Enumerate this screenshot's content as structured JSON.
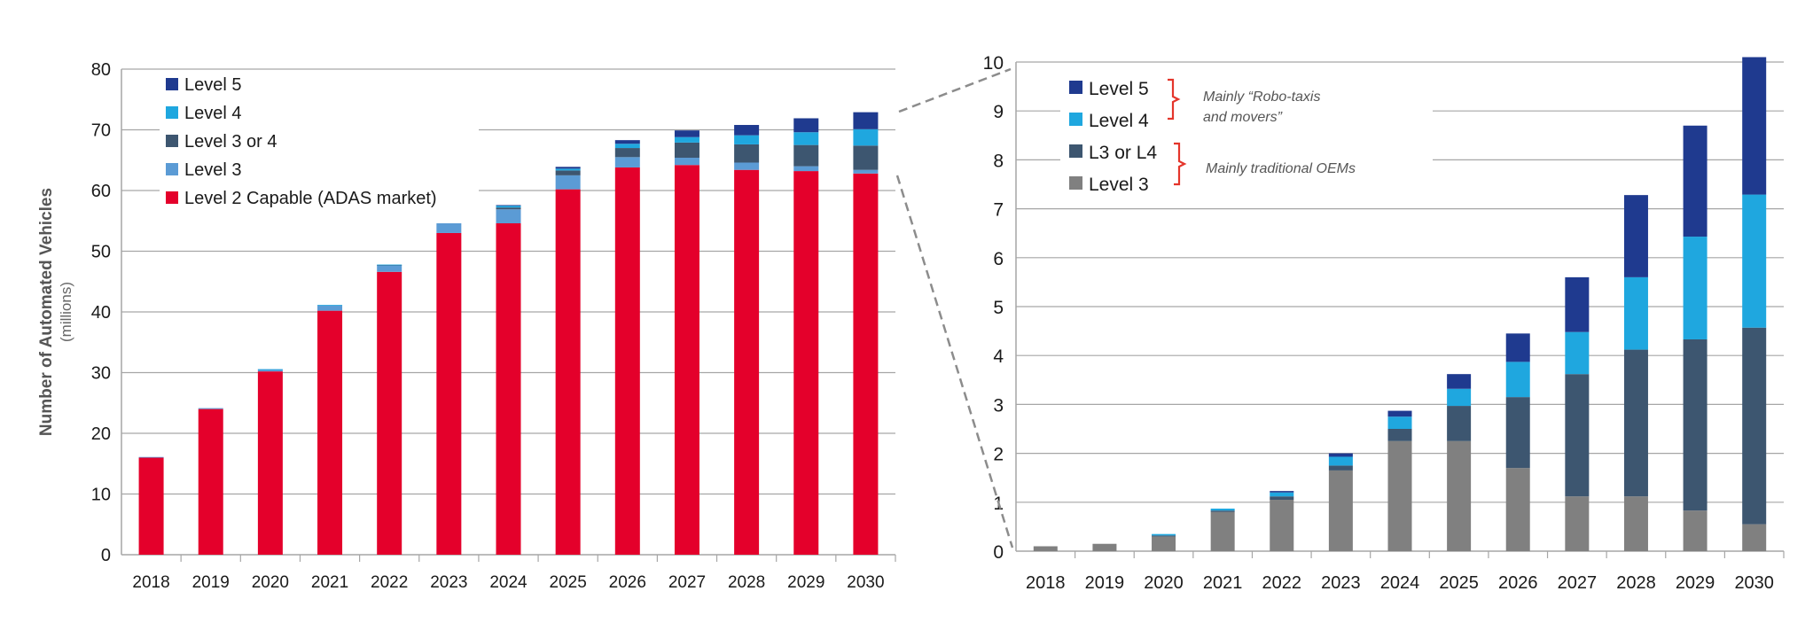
{
  "colors": {
    "level5": "#1f3a8f",
    "level4": "#1fa7df",
    "level3or4": "#3d5670",
    "level3_left": "#5b9bd5",
    "level2": "#e4002b",
    "level3_right": "#808080",
    "grid": "#a6a6a6",
    "axis_text": "#1a1a1a",
    "bracket": "#e4352b",
    "annotation": "#555555",
    "connector": "#8c8c8c"
  },
  "chart_data": [
    {
      "type": "bar",
      "stacked": true,
      "title": "",
      "xlabel": "",
      "ylabel": "Number of Automated Vehicles",
      "ylabel_units": "(millions)",
      "ylim": [
        0,
        80
      ],
      "yticks": [
        0,
        10,
        20,
        30,
        40,
        50,
        60,
        70,
        80
      ],
      "grid": true,
      "legend_position": "top-left",
      "categories": [
        "2018",
        "2019",
        "2020",
        "2021",
        "2022",
        "2023",
        "2024",
        "2025",
        "2026",
        "2027",
        "2028",
        "2029",
        "2030"
      ],
      "series": [
        {
          "name": "Level 2 Capable (ADAS market)",
          "color_key": "level2",
          "values": [
            16,
            24,
            30.2,
            40.2,
            46.6,
            53,
            54.6,
            60.2,
            63.8,
            64.2,
            63.4,
            63.2,
            62.8
          ]
        },
        {
          "name": "Level 3",
          "color_key": "level3_left",
          "values": [
            0.1,
            0.15,
            0.35,
            0.9,
            1.1,
            1.7,
            2.3,
            2.3,
            1.7,
            1.2,
            1.2,
            0.8,
            0.6
          ]
        },
        {
          "name": "Level 3 or 4",
          "color_key": "level3or4",
          "values": [
            0,
            0,
            0,
            0,
            0.05,
            0.1,
            0.3,
            0.8,
            1.5,
            2.5,
            3.0,
            3.5,
            4.0
          ]
        },
        {
          "name": "Level 4",
          "color_key": "level4",
          "values": [
            0,
            0,
            0.01,
            0.05,
            0.05,
            0.2,
            0.3,
            0.3,
            0.7,
            0.9,
            1.5,
            2.1,
            2.7
          ]
        },
        {
          "name": "Level 5",
          "color_key": "level5",
          "values": [
            0,
            0,
            0,
            0,
            0,
            0.05,
            0.1,
            0.3,
            0.6,
            1.1,
            1.7,
            2.3,
            2.8
          ]
        }
      ],
      "legend": [
        "Level 5",
        "Level 4",
        "Level 3 or 4",
        "Level 3",
        "Level 2 Capable (ADAS market)"
      ]
    },
    {
      "type": "bar",
      "stacked": true,
      "title": "",
      "xlabel": "",
      "ylabel": "",
      "ylim": [
        0,
        10
      ],
      "yticks": [
        0,
        1,
        2,
        3,
        4,
        5,
        6,
        7,
        8,
        9,
        10
      ],
      "grid": true,
      "legend_position": "top-left",
      "categories": [
        "2018",
        "2019",
        "2020",
        "2021",
        "2022",
        "2023",
        "2024",
        "2025",
        "2026",
        "2027",
        "2028",
        "2029",
        "2030"
      ],
      "series": [
        {
          "name": "Level 3",
          "color_key": "level3_right",
          "values": [
            0.1,
            0.15,
            0.3,
            0.8,
            1.05,
            1.65,
            2.25,
            2.25,
            1.7,
            1.12,
            1.12,
            0.83,
            0.55
          ]
        },
        {
          "name": "L3 or L4",
          "color_key": "level3or4",
          "values": [
            0,
            0,
            0.02,
            0.03,
            0.07,
            0.1,
            0.25,
            0.72,
            1.45,
            2.5,
            3.0,
            3.5,
            4.02
          ]
        },
        {
          "name": "Level 4",
          "color_key": "level4",
          "values": [
            0,
            0,
            0.03,
            0.04,
            0.08,
            0.18,
            0.25,
            0.35,
            0.72,
            0.86,
            1.48,
            2.1,
            2.72
          ]
        },
        {
          "name": "Level 5",
          "color_key": "level5",
          "values": [
            0,
            0,
            0,
            0,
            0.03,
            0.07,
            0.12,
            0.3,
            0.58,
            1.12,
            1.68,
            2.27,
            2.81
          ]
        }
      ],
      "legend": [
        "Level 5",
        "Level 4",
        "L3 or L4",
        "Level 3"
      ],
      "annotations": [
        {
          "text": "Mainly “Robo-taxis",
          "text2": "and movers”",
          "groups": [
            "Level 5",
            "Level 4"
          ]
        },
        {
          "text": "Mainly traditional OEMs",
          "groups": [
            "L3 or L4",
            "Level 3"
          ]
        }
      ]
    }
  ]
}
